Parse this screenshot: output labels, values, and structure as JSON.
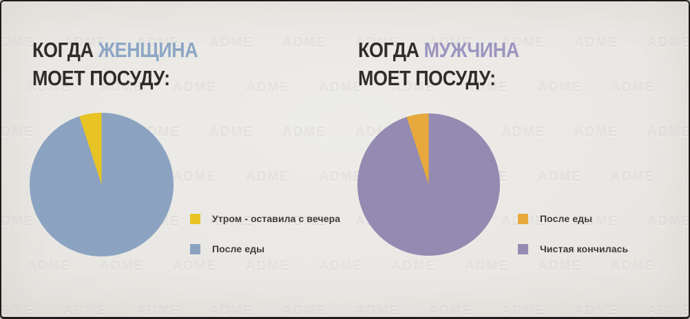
{
  "theme": {
    "background": "#eae8e4",
    "border_color": "#1d1c1a",
    "title_dark": "#2e2d2b",
    "legend_text_color": "#3e3c39"
  },
  "watermark": {
    "text": "ADME"
  },
  "chart_data": [
    {
      "type": "pie",
      "title": "КОГДА ЖЕНЩИНА МОЕТ ПОСУДУ:",
      "title_parts": {
        "prefix": "КОГДА ",
        "subject": "ЖЕНЩИНА",
        "line2": "МОЕТ ПОСУДУ:"
      },
      "subject_color": "#8ca6c5",
      "labels": [
        "Утром - оставила с вечера",
        "После еды"
      ],
      "values": [
        5,
        95
      ],
      "unit": "percent",
      "colors": [
        "#e7c424",
        "#8ba3c1"
      ],
      "start_angle_deg": -18,
      "legend_position": "right-of-pie"
    },
    {
      "type": "pie",
      "title": "КОГДА МУЖЧИНА МОЕТ ПОСУДУ:",
      "title_parts": {
        "prefix": "КОГДА ",
        "subject": "МУЖЧИНА",
        "line2": "МОЕТ ПОСУДУ:"
      },
      "subject_color": "#9c94bf",
      "labels": [
        "После еды",
        "Чистая кончилась"
      ],
      "values": [
        5,
        95
      ],
      "unit": "percent",
      "colors": [
        "#e8a93c",
        "#948bb2"
      ],
      "start_angle_deg": -18,
      "legend_position": "right-of-pie"
    }
  ]
}
